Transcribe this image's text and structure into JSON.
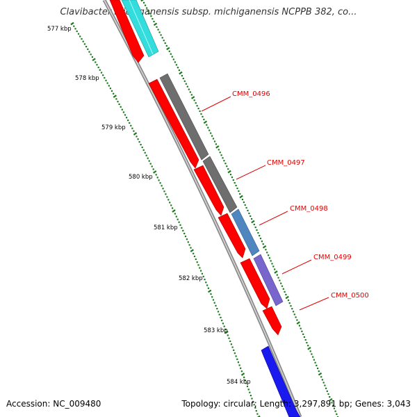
{
  "header": {
    "title": "Clavibacter michiganensis subsp. michiganensis NCPPB 382, co..."
  },
  "footer": {
    "accession": "Accession: NC_009480",
    "summary": "Topology: circular; Length: 3,297,891 bp; Genes: 3,043"
  },
  "ruler": {
    "labels": [
      "577 kbp",
      "578 kbp",
      "579 kbp",
      "580 kbp",
      "581 kbp",
      "582 kbp",
      "583 kbp",
      "584 kbp"
    ],
    "tick_color": "#1a7a1a"
  },
  "genes": [
    {
      "label": "CMM_0496",
      "color": "#6e6e6e"
    },
    {
      "label": "CMM_0497",
      "color": "#6e6e6e"
    },
    {
      "label": "CMM_0498",
      "color": "#4f86bf"
    },
    {
      "label": "CMM_0499",
      "color": "#7866cc"
    },
    {
      "label": "CMM_0500",
      "color": "#ff0000"
    }
  ],
  "colors": {
    "label_red": "#e00000",
    "backbone": "#8c8c8c",
    "forward_red": "#ff0000",
    "cyan": "#33dddd",
    "blue": "#1a1aee"
  }
}
